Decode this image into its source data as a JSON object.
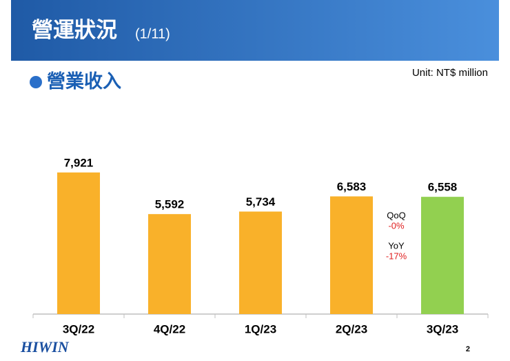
{
  "slide": {
    "title": "營運狀況",
    "counter": "(1/11)",
    "section": "營業收入",
    "unit": "Unit:  NT$ million",
    "logo": "HIWIN",
    "page_number": "2"
  },
  "chart_data": {
    "type": "bar",
    "categories": [
      "3Q/22",
      "4Q/22",
      "1Q/23",
      "2Q/23",
      "3Q/23"
    ],
    "values": [
      7921,
      5592,
      5734,
      6583,
      6558
    ],
    "value_labels": [
      "7,921",
      "5,592",
      "5,734",
      "6,583",
      "6,558"
    ],
    "colors": [
      "#f9b12a",
      "#f9b12a",
      "#f9b12a",
      "#f9b12a",
      "#92d050"
    ],
    "ylim": [
      0,
      10000
    ],
    "annotations": [
      {
        "label": "QoQ",
        "value": "-0%"
      },
      {
        "label": "YoY",
        "value": "-17%"
      }
    ]
  }
}
